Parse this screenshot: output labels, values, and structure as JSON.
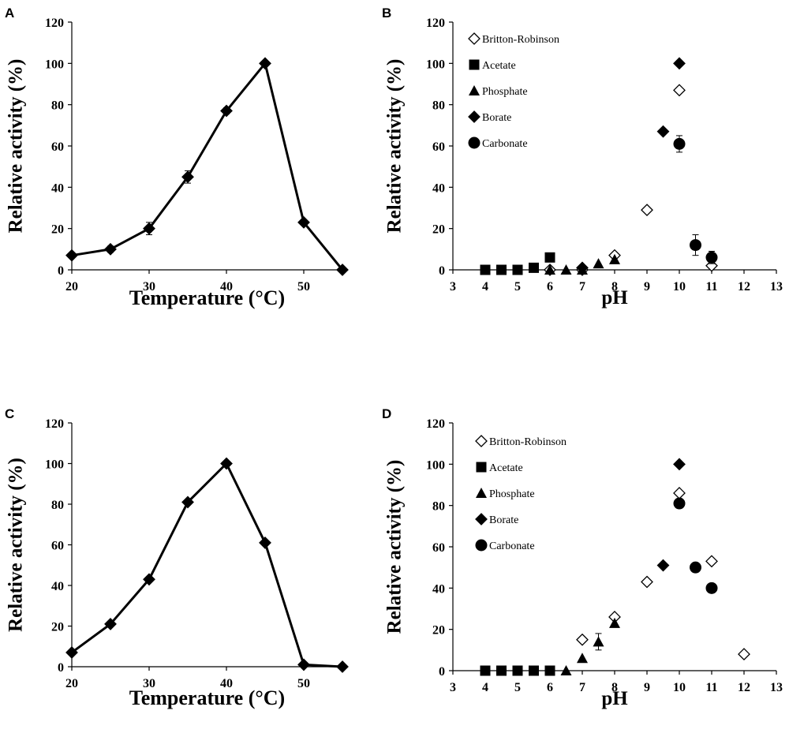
{
  "chart_data": [
    {
      "panel": "A",
      "type": "line",
      "xlabel": "Temperature (°C)",
      "ylabel": "Relative activity (%)",
      "xlim": [
        20,
        55
      ],
      "ylim": [
        0,
        120
      ],
      "xticks": [
        20,
        30,
        40,
        50
      ],
      "yticks": [
        0,
        20,
        40,
        60,
        80,
        100,
        120
      ],
      "series": [
        {
          "name": "Relative activity",
          "marker": "diamond",
          "x": [
            20,
            25,
            30,
            35,
            40,
            45,
            50,
            55
          ],
          "y": [
            7,
            10,
            20,
            45,
            77,
            100,
            23,
            0
          ],
          "err": [
            0,
            1.5,
            3,
            3,
            1.5,
            0,
            0,
            0
          ]
        }
      ]
    },
    {
      "panel": "B",
      "type": "scatter",
      "xlabel": "pH",
      "ylabel": "Relative activity (%)",
      "xlim": [
        3,
        13
      ],
      "ylim": [
        0,
        120
      ],
      "xticks": [
        3,
        4,
        5,
        6,
        7,
        8,
        9,
        10,
        11,
        12,
        13
      ],
      "yticks": [
        0,
        20,
        40,
        60,
        80,
        100,
        120
      ],
      "legend": [
        "Britton-Robinson",
        "Acetate",
        "Phosphate",
        "Borate",
        "Carbonate"
      ],
      "series": [
        {
          "name": "Britton-Robinson",
          "marker": "diamond-open",
          "x": [
            6,
            7,
            8,
            9,
            10,
            11
          ],
          "y": [
            0,
            0,
            7,
            29,
            87,
            2
          ],
          "err": [
            0,
            0,
            0,
            0,
            0,
            0
          ]
        },
        {
          "name": "Acetate",
          "marker": "square",
          "x": [
            4,
            4.5,
            5,
            5.5,
            6
          ],
          "y": [
            0,
            0,
            0,
            1,
            6
          ],
          "err": [
            0,
            0,
            0,
            0,
            0
          ]
        },
        {
          "name": "Phosphate",
          "marker": "triangle",
          "x": [
            6,
            6.5,
            7,
            7.5,
            8
          ],
          "y": [
            0,
            0,
            0,
            3,
            5
          ],
          "err": [
            0,
            0,
            0,
            0,
            0
          ]
        },
        {
          "name": "Borate",
          "marker": "diamond",
          "x": [
            7,
            9.5,
            10
          ],
          "y": [
            1,
            67,
            100
          ],
          "err": [
            0,
            0,
            0
          ]
        },
        {
          "name": "Carbonate",
          "marker": "circle",
          "x": [
            10,
            10.5,
            11
          ],
          "y": [
            61,
            12,
            6
          ],
          "err": [
            4,
            5,
            3
          ]
        }
      ]
    },
    {
      "panel": "C",
      "type": "line",
      "xlabel": "Temperature (°C)",
      "ylabel": "Relative activity (%)",
      "xlim": [
        20,
        55
      ],
      "ylim": [
        0,
        120
      ],
      "xticks": [
        20,
        30,
        40,
        50
      ],
      "yticks": [
        0,
        20,
        40,
        60,
        80,
        100,
        120
      ],
      "series": [
        {
          "name": "Relative activity",
          "marker": "diamond",
          "x": [
            20,
            25,
            30,
            35,
            40,
            45,
            50,
            55
          ],
          "y": [
            7,
            21,
            43,
            81,
            100,
            61,
            1,
            0
          ],
          "err": [
            0,
            0,
            0,
            0,
            0,
            0,
            0,
            0
          ]
        }
      ]
    },
    {
      "panel": "D",
      "type": "scatter",
      "xlabel": "pH",
      "ylabel": "Relative activity (%)",
      "xlim": [
        3,
        13
      ],
      "ylim": [
        0,
        120
      ],
      "xticks": [
        3,
        4,
        5,
        6,
        7,
        8,
        9,
        10,
        11,
        12,
        13
      ],
      "yticks": [
        0,
        20,
        40,
        60,
        80,
        100,
        120
      ],
      "legend": [
        "Britton-Robinson",
        "Acetate",
        "Phosphate",
        "Borate",
        "Carbonate"
      ],
      "series": [
        {
          "name": "Britton-Robinson",
          "marker": "diamond-open",
          "x": [
            7,
            8,
            9,
            10,
            11,
            12
          ],
          "y": [
            15,
            26,
            43,
            86,
            53,
            8
          ],
          "err": [
            0,
            0,
            0,
            0,
            0,
            0
          ]
        },
        {
          "name": "Acetate",
          "marker": "square",
          "x": [
            4,
            4.5,
            5,
            5.5,
            6
          ],
          "y": [
            0,
            0,
            0,
            0,
            0
          ],
          "err": [
            0,
            0,
            0,
            0,
            0
          ]
        },
        {
          "name": "Phosphate",
          "marker": "triangle",
          "x": [
            6.5,
            7,
            7.5,
            8
          ],
          "y": [
            0,
            6,
            14,
            23
          ],
          "err": [
            0,
            0,
            4,
            0
          ]
        },
        {
          "name": "Borate",
          "marker": "diamond",
          "x": [
            9.5,
            10
          ],
          "y": [
            51,
            100
          ],
          "err": [
            0,
            0
          ]
        },
        {
          "name": "Carbonate",
          "marker": "circle",
          "x": [
            10,
            10.5,
            11
          ],
          "y": [
            81,
            50,
            40
          ],
          "err": [
            0,
            0,
            0
          ]
        }
      ]
    }
  ]
}
